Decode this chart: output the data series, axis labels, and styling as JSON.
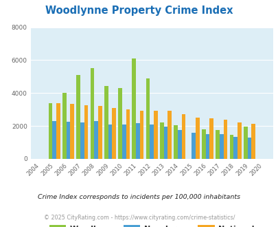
{
  "title": "Woodlynne Property Crime Index",
  "title_color": "#1a6eb5",
  "years": [
    "2004",
    "2005",
    "2006",
    "2007",
    "2008",
    "2009",
    "2010",
    "2011",
    "2012",
    "2013",
    "2014",
    "2015",
    "2016",
    "2017",
    "2018",
    "2019",
    "2020"
  ],
  "woodlynne": [
    0,
    3400,
    4000,
    5100,
    5500,
    4450,
    4300,
    6100,
    4900,
    2200,
    2050,
    0,
    1800,
    1750,
    1450,
    1950,
    0
  ],
  "new_jersey": [
    0,
    2300,
    2250,
    2200,
    2300,
    2075,
    2075,
    2175,
    2075,
    1950,
    1775,
    1600,
    1500,
    1500,
    1350,
    1300,
    0
  ],
  "national": [
    0,
    3400,
    3325,
    3250,
    3200,
    3075,
    3000,
    2925,
    2925,
    2925,
    2700,
    2500,
    2475,
    2375,
    2200,
    2150,
    0
  ],
  "woodlynne_color": "#8dc63f",
  "nj_color": "#4a9fd4",
  "national_color": "#f5a623",
  "ylim": [
    0,
    8000
  ],
  "yticks": [
    0,
    2000,
    4000,
    6000,
    8000
  ],
  "bg_color": "#ddeef6",
  "fig_bg": "#ffffff",
  "footnote1": "Crime Index corresponds to incidents per 100,000 inhabitants",
  "footnote2": "© 2025 CityRating.com - https://www.cityrating.com/crime-statistics/",
  "footnote1_color": "#222222",
  "footnote2_color": "#999999"
}
